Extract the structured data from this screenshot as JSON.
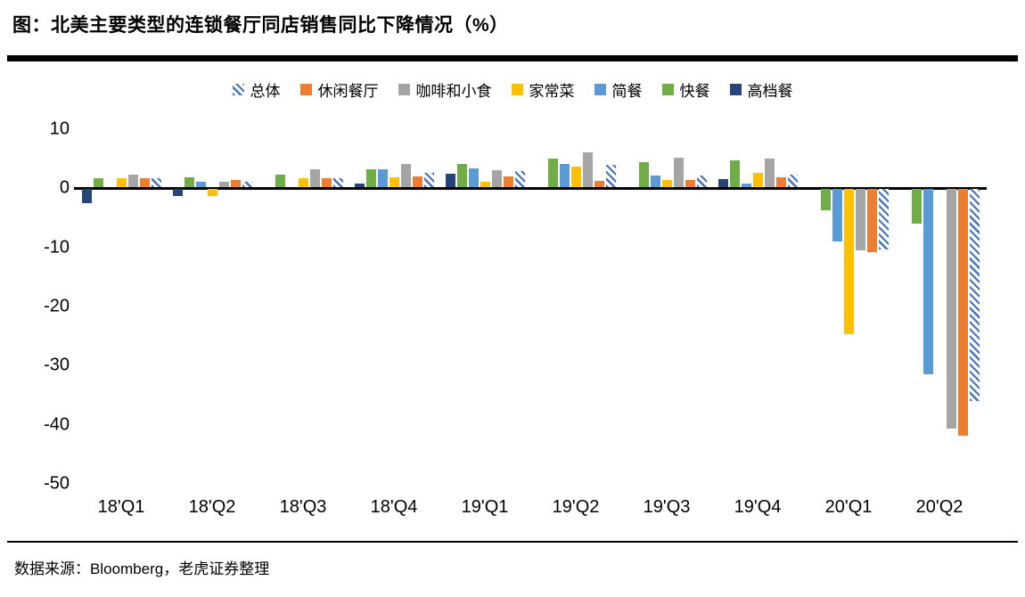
{
  "title": "图：北美主要类型的连锁餐厅同店销售同比下降情况（%）",
  "source": "数据来源：Bloomberg，老虎证券整理",
  "colors": {
    "overall_hatch_blue": "#4472C4",
    "casual_orange": "#ED7D31",
    "coffee_gray": "#A5A5A5",
    "homestyle_yellow": "#FFC000",
    "fastcasual_blue": "#5B9BD5",
    "fastfood_green": "#70AD47",
    "finedining_navy": "#264478",
    "axis_black": "#000000"
  },
  "chart_data": {
    "type": "bar",
    "title": "北美主要类型的连锁餐厅同店销售同比下降情况（%）",
    "categories": [
      "18'Q1",
      "18'Q2",
      "18'Q3",
      "18'Q4",
      "19'Q1",
      "19'Q2",
      "19'Q3",
      "19'Q4",
      "20'Q1",
      "20'Q2"
    ],
    "series": [
      {
        "name": "总体",
        "color": "#4472C4",
        "pattern": "diagonal-hatch",
        "values": [
          1.5,
          0.9,
          1.6,
          2.4,
          2.8,
          3.8,
          2.0,
          2.2,
          -10.2,
          -35.8
        ]
      },
      {
        "name": "休闲餐厅",
        "color": "#ED7D31",
        "pattern": "solid",
        "values": [
          1.5,
          1.2,
          1.5,
          1.8,
          1.9,
          1.1,
          1.2,
          1.7,
          -10.6,
          -41.8
        ]
      },
      {
        "name": "咖啡和小食",
        "color": "#A5A5A5",
        "pattern": "solid",
        "values": [
          2.1,
          1.0,
          3.0,
          3.9,
          2.9,
          5.9,
          5.0,
          4.9,
          -10.4,
          -40.5
        ]
      },
      {
        "name": "家常菜",
        "color": "#FFC000",
        "pattern": "solid",
        "values": [
          1.5,
          -1.1,
          1.5,
          1.7,
          1.0,
          3.5,
          1.2,
          2.4,
          -24.5,
          0
        ]
      },
      {
        "name": "简餐",
        "color": "#5B9BD5",
        "pattern": "solid",
        "values": [
          0,
          1.0,
          0,
          3.1,
          3.2,
          4.0,
          2.0,
          0.7,
          -8.8,
          -31.3
        ]
      },
      {
        "name": "快餐",
        "color": "#70AD47",
        "pattern": "solid",
        "values": [
          1.5,
          1.7,
          2.2,
          3.0,
          4.0,
          4.8,
          4.3,
          4.5,
          -3.5,
          -5.9
        ]
      },
      {
        "name": "高档餐",
        "color": "#264478",
        "pattern": "solid",
        "values": [
          -2.3,
          -1.2,
          0,
          0.7,
          2.3,
          0,
          0,
          1.4,
          0,
          0
        ]
      }
    ],
    "draw_order": "reversed-from-legend",
    "xlabel": "",
    "ylabel": "",
    "ylim": [
      -50,
      10
    ],
    "y_ticks": [
      10,
      0,
      -10,
      -20,
      -30,
      -40,
      -50
    ],
    "grid": false,
    "legend_position": "top-center",
    "zero_baseline": true,
    "note_missing_bars": "值为0的柱未绘制（如20'Q2的家常菜与高档餐）"
  }
}
